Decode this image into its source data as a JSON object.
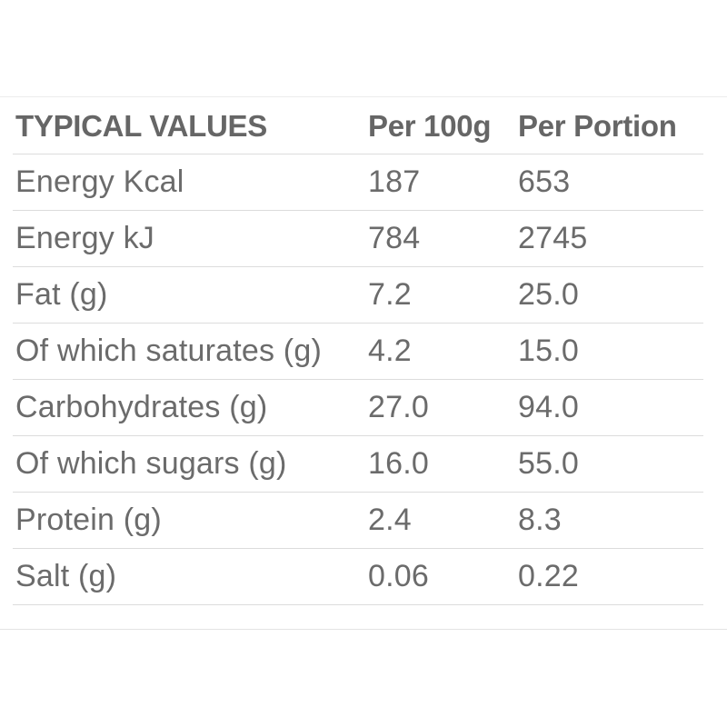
{
  "table": {
    "headers": [
      "TYPICAL VALUES",
      "Per 100g",
      "Per Portion"
    ],
    "rows": [
      {
        "label": "Energy Kcal",
        "per100g": "187",
        "perPortion": "653"
      },
      {
        "label": "Energy kJ",
        "per100g": "784",
        "perPortion": "2745"
      },
      {
        "label": "Fat (g)",
        "per100g": "7.2",
        "perPortion": "25.0"
      },
      {
        "label": "Of which saturates (g)",
        "per100g": "4.2",
        "perPortion": "15.0"
      },
      {
        "label": "Carbohydrates (g)",
        "per100g": "27.0",
        "perPortion": "94.0"
      },
      {
        "label": "Of which sugars (g)",
        "per100g": "16.0",
        "perPortion": "55.0"
      },
      {
        "label": "Protein (g)",
        "per100g": "2.4",
        "perPortion": "8.3"
      },
      {
        "label": "Salt (g)",
        "per100g": "0.06",
        "perPortion": "0.22"
      }
    ]
  }
}
